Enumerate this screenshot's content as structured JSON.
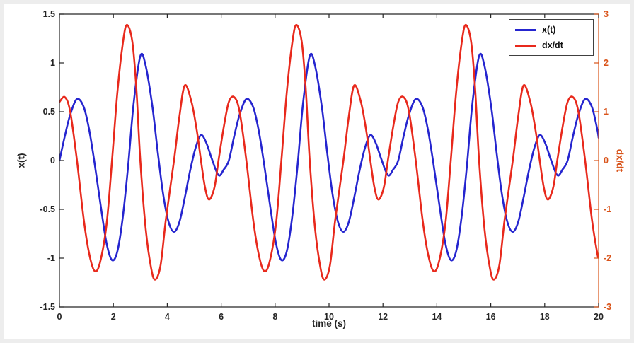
{
  "window": {
    "background": "#ededed",
    "figure_background": "#ffffff"
  },
  "chart_data": {
    "type": "line",
    "title": "",
    "xlabel": "time (s)",
    "ylabel_left": "x(t)",
    "ylabel_right": "dx/dt",
    "x_range": [
      0,
      20
    ],
    "x_tick_values": [
      0,
      2,
      4,
      6,
      8,
      10,
      12,
      14,
      16,
      18,
      20
    ],
    "x_tick_labels": [
      "0",
      "2",
      "4",
      "6",
      "8",
      "10",
      "12",
      "14",
      "16",
      "18",
      "20"
    ],
    "y_left_range": [
      -1.5,
      1.5
    ],
    "y_left_tick_values": [
      -1.5,
      -1,
      -0.5,
      0,
      0.5,
      1,
      1.5
    ],
    "y_left_tick_labels": [
      "-1.5",
      "-1",
      "-0.5",
      "0",
      "0.5",
      "1",
      "1.5"
    ],
    "y_right_range": [
      -3,
      3
    ],
    "y_right_tick_values": [
      -3,
      -2,
      -1,
      0,
      1,
      2,
      3
    ],
    "y_right_tick_labels": [
      "-3",
      "-2",
      "-1",
      "0",
      "1",
      "2",
      "3"
    ],
    "grid": false,
    "axes_color_left": "#262626",
    "axes_color_right": "#d95319",
    "legend": {
      "position": "top-right",
      "entries": [
        {
          "label": "x(t)",
          "color": "#2525cf"
        },
        {
          "label": "dx/dt",
          "color": "#e8291c"
        }
      ]
    },
    "series": [
      {
        "name": "x(t)",
        "axis": "left",
        "color": "#2525cf",
        "line_width": 2.6,
        "periodic": true,
        "period": 6.2832,
        "points_one_period": [
          [
            0.0,
            0.0
          ],
          [
            0.2,
            0.25
          ],
          [
            0.4,
            0.47
          ],
          [
            0.65,
            0.63
          ],
          [
            0.9,
            0.55
          ],
          [
            1.1,
            0.32
          ],
          [
            1.3,
            -0.02
          ],
          [
            1.55,
            -0.5
          ],
          [
            1.75,
            -0.85
          ],
          [
            1.95,
            -1.02
          ],
          [
            2.15,
            -0.93
          ],
          [
            2.35,
            -0.58
          ],
          [
            2.55,
            -0.05
          ],
          [
            2.75,
            0.58
          ],
          [
            3.0,
            1.07
          ],
          [
            3.2,
            0.97
          ],
          [
            3.45,
            0.55
          ],
          [
            3.65,
            0.08
          ],
          [
            3.85,
            -0.35
          ],
          [
            4.05,
            -0.63
          ],
          [
            4.25,
            -0.73
          ],
          [
            4.45,
            -0.63
          ],
          [
            4.65,
            -0.38
          ],
          [
            4.85,
            -0.1
          ],
          [
            5.05,
            0.13
          ],
          [
            5.25,
            0.26
          ],
          [
            5.45,
            0.18
          ],
          [
            5.65,
            0.02
          ],
          [
            5.9,
            -0.15
          ],
          [
            6.1,
            -0.09
          ],
          [
            6.2832,
            0.0
          ]
        ]
      },
      {
        "name": "dx/dt",
        "axis": "right",
        "color": "#e8291c",
        "line_width": 2.6,
        "periodic": true,
        "period": 6.2832,
        "points_one_period": [
          [
            0.0,
            1.2
          ],
          [
            0.2,
            1.3
          ],
          [
            0.4,
            1.0
          ],
          [
            0.65,
            0.0
          ],
          [
            0.9,
            -1.2
          ],
          [
            1.1,
            -1.9
          ],
          [
            1.3,
            -2.26
          ],
          [
            1.5,
            -2.1
          ],
          [
            1.75,
            -1.3
          ],
          [
            1.95,
            0.0
          ],
          [
            2.15,
            1.4
          ],
          [
            2.35,
            2.4
          ],
          [
            2.5,
            2.78
          ],
          [
            2.7,
            2.45
          ],
          [
            2.85,
            1.5
          ],
          [
            3.0,
            0.0
          ],
          [
            3.2,
            -1.4
          ],
          [
            3.4,
            -2.2
          ],
          [
            3.55,
            -2.44
          ],
          [
            3.75,
            -2.15
          ],
          [
            3.95,
            -1.2
          ],
          [
            4.25,
            0.0
          ],
          [
            4.45,
            0.9
          ],
          [
            4.65,
            1.54
          ],
          [
            4.9,
            1.2
          ],
          [
            5.1,
            0.6
          ],
          [
            5.25,
            0.0
          ],
          [
            5.4,
            -0.55
          ],
          [
            5.55,
            -0.8
          ],
          [
            5.75,
            -0.55
          ],
          [
            5.9,
            0.0
          ],
          [
            6.1,
            0.7
          ],
          [
            6.2832,
            1.2
          ]
        ]
      }
    ]
  }
}
